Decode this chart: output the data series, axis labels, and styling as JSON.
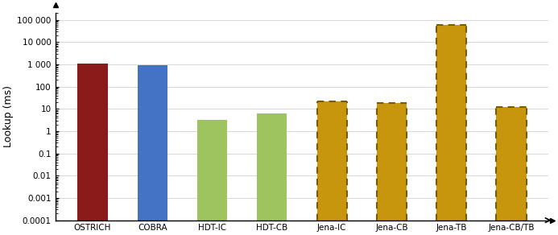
{
  "categories": [
    "OSTRICH",
    "COBRA",
    "HDT-IC",
    "HDT-CB",
    "Jena-IC",
    "Jena-CB",
    "Jena-TB",
    "Jena-CB/TB"
  ],
  "values": [
    1050,
    950,
    3.2,
    6.0,
    22,
    18,
    60000,
    12
  ],
  "bar_colors": [
    "#8B1A1A",
    "#4472C4",
    "#9DC45F",
    "#9DC45F",
    "#C8960C",
    "#C8960C",
    "#C8960C",
    "#C8960C"
  ],
  "edge_colors": [
    "none",
    "none",
    "none",
    "none",
    "#7A5C00",
    "#7A5C00",
    "#7A5C00",
    "#7A5C00"
  ],
  "linestyles": [
    "solid",
    "solid",
    "solid",
    "solid",
    "dashed",
    "dashed",
    "dashed",
    "dashed"
  ],
  "ylabel": "Lookup (ms)",
  "ylim": [
    0.0001,
    200000
  ],
  "yticks": [
    0.0001,
    0.001,
    0.01,
    0.1,
    1,
    10,
    100,
    1000,
    10000,
    100000
  ],
  "ytick_labels": [
    "0.0001",
    "0.001",
    "0.01",
    "0.1",
    "1",
    "10",
    "100",
    "1 000",
    "10 000",
    "100 000"
  ],
  "background_color": "#ffffff",
  "bar_width": 0.5
}
